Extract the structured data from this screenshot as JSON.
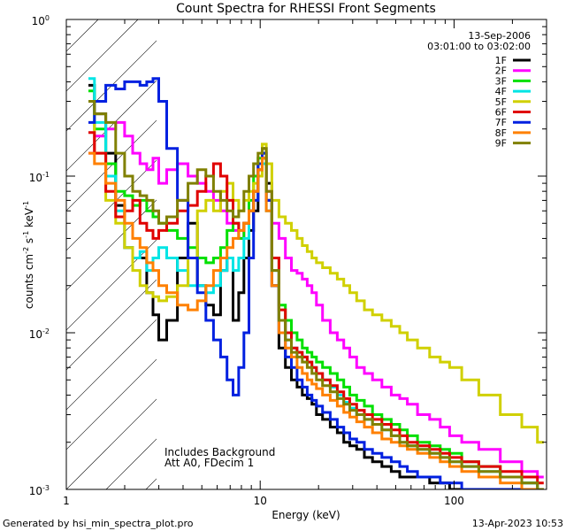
{
  "chart_data": {
    "type": "line",
    "title": "Count Spectra for RHESSI Front Segments",
    "xlabel": "Energy (keV)",
    "ylabel_main": "counts cm",
    "ylabel_sup1": "-2",
    "ylabel_mid1": " s",
    "ylabel_sup2": "-1",
    "ylabel_mid2": " keV",
    "ylabel_sup3": "-1",
    "xscale": "log",
    "yscale": "log",
    "xlim": [
      1,
      300
    ],
    "ylim": [
      0.001,
      1
    ],
    "xticks": [
      {
        "v": 1,
        "label": "1"
      },
      {
        "v": 10,
        "label": "10"
      },
      {
        "v": 100,
        "label": "100"
      }
    ],
    "yticks": [
      {
        "v": 0.001,
        "base": "10",
        "exp": "-3"
      },
      {
        "v": 0.01,
        "base": "10",
        "exp": "-2"
      },
      {
        "v": 0.1,
        "base": "10",
        "exp": "-1"
      },
      {
        "v": 1,
        "base": "10",
        "exp": "0"
      }
    ],
    "date": "13-Sep-2006",
    "time_range": "03:01:00 to 03:02:00",
    "excluded_region_keV": [
      1,
      3
    ],
    "annotations": [
      "Includes Background",
      "Att A0, FDecim 1"
    ],
    "footer_left": "Generated by hsi_min_spectra_plot.pro",
    "footer_right": "13-Apr-2023 10:53",
    "series": [
      {
        "name": "1F",
        "color": "#000000",
        "x": [
          1.3,
          1.5,
          1.7,
          1.9,
          2.1,
          2.3,
          2.5,
          2.7,
          2.9,
          3.1,
          3.5,
          4,
          4.5,
          5,
          5.5,
          6,
          6.5,
          7,
          7.5,
          8,
          8.5,
          9,
          9.5,
          10,
          10.5,
          11,
          12,
          13,
          14,
          15,
          16,
          17,
          18,
          19,
          20,
          22,
          24,
          26,
          28,
          30,
          33,
          36,
          40,
          45,
          50,
          55,
          60,
          70,
          80,
          90,
          100,
          120,
          150,
          200,
          250,
          290
        ],
        "y": [
          0.38,
          0.25,
          0.14,
          0.065,
          0.035,
          0.03,
          0.03,
          0.018,
          0.013,
          0.009,
          0.012,
          0.03,
          0.05,
          0.02,
          0.015,
          0.013,
          0.025,
          0.03,
          0.012,
          0.018,
          0.03,
          0.045,
          0.06,
          0.1,
          0.15,
          0.09,
          0.02,
          0.008,
          0.006,
          0.005,
          0.0045,
          0.004,
          0.0038,
          0.0035,
          0.003,
          0.0028,
          0.0025,
          0.0023,
          0.002,
          0.0019,
          0.0018,
          0.0016,
          0.0015,
          0.0014,
          0.0013,
          0.0012,
          0.0012,
          0.0012,
          0.0011,
          0.0011,
          0.001,
          0.001,
          0.001,
          0.001,
          0.001,
          0.001
        ]
      },
      {
        "name": "2F",
        "color": "#ff00ff",
        "x": [
          1.3,
          1.5,
          1.7,
          1.9,
          2.1,
          2.3,
          2.5,
          2.7,
          2.9,
          3.1,
          3.5,
          4,
          4.5,
          5,
          5.5,
          6,
          6.5,
          7,
          7.5,
          8,
          8.5,
          9,
          9.5,
          10,
          10.5,
          11,
          12,
          13,
          14,
          15,
          16,
          17,
          18,
          19,
          20,
          22,
          24,
          26,
          28,
          30,
          33,
          36,
          40,
          45,
          50,
          55,
          60,
          70,
          80,
          90,
          100,
          120,
          150,
          200,
          250,
          290
        ],
        "y": [
          0.14,
          0.18,
          0.2,
          0.22,
          0.18,
          0.14,
          0.12,
          0.11,
          0.13,
          0.09,
          0.11,
          0.12,
          0.1,
          0.09,
          0.08,
          0.07,
          0.06,
          0.05,
          0.045,
          0.04,
          0.05,
          0.06,
          0.08,
          0.12,
          0.14,
          0.08,
          0.05,
          0.04,
          0.03,
          0.025,
          0.024,
          0.022,
          0.02,
          0.018,
          0.015,
          0.012,
          0.01,
          0.009,
          0.008,
          0.007,
          0.006,
          0.0055,
          0.005,
          0.0045,
          0.004,
          0.0038,
          0.0035,
          0.003,
          0.0028,
          0.0025,
          0.0022,
          0.002,
          0.0018,
          0.0015,
          0.0013,
          0.0012
        ]
      },
      {
        "name": "3F",
        "color": "#00e000",
        "x": [
          1.3,
          1.5,
          1.7,
          1.9,
          2.1,
          2.3,
          2.5,
          2.7,
          2.9,
          3.1,
          3.5,
          4,
          4.5,
          5,
          5.5,
          6,
          6.5,
          7,
          7.5,
          8,
          8.5,
          9,
          9.5,
          10,
          10.5,
          11,
          12,
          13,
          14,
          15,
          16,
          17,
          18,
          19,
          20,
          22,
          24,
          26,
          28,
          30,
          33,
          36,
          40,
          45,
          50,
          55,
          60,
          70,
          80,
          90,
          100,
          120,
          150,
          200,
          250,
          290
        ],
        "y": [
          0.35,
          0.2,
          0.12,
          0.08,
          0.075,
          0.065,
          0.07,
          0.06,
          0.055,
          0.05,
          0.045,
          0.04,
          0.035,
          0.03,
          0.028,
          0.03,
          0.035,
          0.045,
          0.05,
          0.04,
          0.05,
          0.07,
          0.1,
          0.13,
          0.14,
          0.07,
          0.03,
          0.015,
          0.012,
          0.01,
          0.009,
          0.008,
          0.0075,
          0.007,
          0.0065,
          0.006,
          0.0055,
          0.005,
          0.0045,
          0.004,
          0.0037,
          0.0034,
          0.003,
          0.0028,
          0.0026,
          0.0024,
          0.0022,
          0.002,
          0.0019,
          0.0018,
          0.0017,
          0.0015,
          0.0014,
          0.0012,
          0.0011,
          0.001
        ]
      },
      {
        "name": "4F",
        "color": "#00e5e5",
        "x": [
          1.3,
          1.5,
          1.7,
          1.9,
          2.1,
          2.3,
          2.5,
          2.7,
          2.9,
          3.1,
          3.5,
          4,
          4.5,
          5,
          5.5,
          6,
          6.5,
          7,
          7.5,
          8,
          8.5,
          9,
          9.5,
          10,
          10.5,
          11,
          12,
          13,
          14,
          15,
          16,
          17,
          18,
          19,
          20,
          22,
          24,
          26,
          28,
          30,
          33,
          36,
          40,
          45,
          50,
          55,
          60,
          70,
          80,
          90,
          100,
          120,
          150,
          200,
          250,
          290
        ],
        "y": [
          0.42,
          0.22,
          0.1,
          0.06,
          0.035,
          0.03,
          0.033,
          0.025,
          0.03,
          0.035,
          0.03,
          0.025,
          0.02,
          0.02,
          0.018,
          0.02,
          0.025,
          0.03,
          0.025,
          0.03,
          0.04,
          0.06,
          0.08,
          0.11,
          0.12,
          0.06,
          0.025,
          0.012,
          0.009,
          0.008,
          0.0075,
          0.007,
          0.0065,
          0.006,
          0.0055,
          0.005,
          0.0045,
          0.004,
          0.0036,
          0.0033,
          0.003,
          0.0028,
          0.0026,
          0.0024,
          0.0022,
          0.002,
          0.0019,
          0.0018,
          0.0017,
          0.0016,
          0.0015,
          0.0014,
          0.0013,
          0.0012,
          0.0011,
          0.001
        ]
      },
      {
        "name": "5F",
        "color": "#d0d000",
        "x": [
          1.3,
          1.5,
          1.7,
          1.9,
          2.1,
          2.3,
          2.5,
          2.7,
          2.9,
          3.1,
          3.5,
          4,
          4.5,
          5,
          5.5,
          6,
          6.5,
          7,
          7.5,
          8,
          8.5,
          9,
          9.5,
          10,
          10.5,
          11,
          12,
          13,
          14,
          15,
          16,
          17,
          18,
          19,
          20,
          22,
          24,
          26,
          28,
          30,
          33,
          36,
          40,
          45,
          50,
          55,
          60,
          70,
          80,
          90,
          100,
          120,
          150,
          200,
          250,
          290
        ],
        "y": [
          0.3,
          0.14,
          0.07,
          0.05,
          0.035,
          0.025,
          0.02,
          0.018,
          0.017,
          0.016,
          0.017,
          0.02,
          0.03,
          0.06,
          0.07,
          0.06,
          0.08,
          0.09,
          0.07,
          0.06,
          0.07,
          0.08,
          0.09,
          0.1,
          0.16,
          0.12,
          0.07,
          0.055,
          0.05,
          0.045,
          0.04,
          0.036,
          0.033,
          0.03,
          0.028,
          0.026,
          0.024,
          0.022,
          0.02,
          0.018,
          0.016,
          0.014,
          0.013,
          0.012,
          0.011,
          0.01,
          0.009,
          0.008,
          0.007,
          0.0065,
          0.006,
          0.005,
          0.004,
          0.003,
          0.0025,
          0.002
        ]
      },
      {
        "name": "6F",
        "color": "#e00000",
        "x": [
          1.3,
          1.5,
          1.7,
          1.9,
          2.1,
          2.3,
          2.5,
          2.7,
          2.9,
          3.1,
          3.5,
          4,
          4.5,
          5,
          5.5,
          6,
          6.5,
          7,
          7.5,
          8,
          8.5,
          9,
          9.5,
          10,
          10.5,
          11,
          12,
          13,
          14,
          15,
          16,
          17,
          18,
          19,
          20,
          22,
          24,
          26,
          28,
          30,
          33,
          36,
          40,
          45,
          50,
          55,
          60,
          70,
          80,
          90,
          100,
          120,
          150,
          200,
          250,
          290
        ],
        "y": [
          0.19,
          0.14,
          0.08,
          0.055,
          0.06,
          0.07,
          0.05,
          0.045,
          0.04,
          0.045,
          0.05,
          0.06,
          0.065,
          0.08,
          0.1,
          0.12,
          0.1,
          0.07,
          0.05,
          0.045,
          0.05,
          0.06,
          0.08,
          0.11,
          0.13,
          0.07,
          0.03,
          0.014,
          0.01,
          0.008,
          0.0075,
          0.007,
          0.0065,
          0.006,
          0.0055,
          0.005,
          0.0046,
          0.0042,
          0.0038,
          0.0035,
          0.0032,
          0.003,
          0.0028,
          0.0026,
          0.0024,
          0.0022,
          0.002,
          0.0019,
          0.0018,
          0.0017,
          0.0016,
          0.0015,
          0.0014,
          0.0013,
          0.0012,
          0.0011
        ]
      },
      {
        "name": "7F",
        "color": "#0020e0",
        "x": [
          1.3,
          1.5,
          1.7,
          1.9,
          2.1,
          2.3,
          2.5,
          2.7,
          2.9,
          3.1,
          3.5,
          4,
          4.5,
          5,
          5.5,
          6,
          6.5,
          7,
          7.5,
          8,
          8.5,
          9,
          9.5,
          10,
          10.5,
          11,
          12,
          13,
          14,
          15,
          16,
          17,
          18,
          19,
          20,
          22,
          24,
          26,
          28,
          30,
          33,
          36,
          40,
          45,
          50,
          55,
          60,
          70,
          80,
          90,
          100,
          120,
          150,
          200,
          250,
          290
        ],
        "y": [
          0.22,
          0.3,
          0.38,
          0.36,
          0.4,
          0.4,
          0.38,
          0.4,
          0.42,
          0.3,
          0.15,
          0.07,
          0.03,
          0.018,
          0.012,
          0.009,
          0.007,
          0.005,
          0.004,
          0.006,
          0.01,
          0.03,
          0.07,
          0.12,
          0.14,
          0.07,
          0.02,
          0.01,
          0.007,
          0.006,
          0.005,
          0.0045,
          0.004,
          0.0037,
          0.0034,
          0.0031,
          0.0028,
          0.0025,
          0.0023,
          0.0021,
          0.002,
          0.0018,
          0.0017,
          0.0016,
          0.0015,
          0.0014,
          0.0013,
          0.0012,
          0.0012,
          0.0011,
          0.0011,
          0.001,
          0.001,
          0.001,
          0.001,
          0.001
        ]
      },
      {
        "name": "8F",
        "color": "#ff8000",
        "x": [
          1.3,
          1.5,
          1.7,
          1.9,
          2.1,
          2.3,
          2.5,
          2.7,
          2.9,
          3.1,
          3.5,
          4,
          4.5,
          5,
          5.5,
          6,
          6.5,
          7,
          7.5,
          8,
          8.5,
          9,
          9.5,
          10,
          10.5,
          11,
          12,
          13,
          14,
          15,
          16,
          17,
          18,
          19,
          20,
          22,
          24,
          26,
          28,
          30,
          33,
          36,
          40,
          45,
          50,
          55,
          60,
          70,
          80,
          90,
          100,
          120,
          150,
          200,
          250,
          290
        ],
        "y": [
          0.14,
          0.12,
          0.09,
          0.07,
          0.05,
          0.04,
          0.035,
          0.028,
          0.025,
          0.02,
          0.018,
          0.015,
          0.014,
          0.016,
          0.02,
          0.025,
          0.03,
          0.035,
          0.04,
          0.045,
          0.05,
          0.06,
          0.08,
          0.11,
          0.13,
          0.06,
          0.02,
          0.01,
          0.008,
          0.007,
          0.006,
          0.0055,
          0.005,
          0.0047,
          0.0044,
          0.004,
          0.0037,
          0.0034,
          0.0031,
          0.0029,
          0.0027,
          0.0025,
          0.0023,
          0.0021,
          0.002,
          0.0019,
          0.0018,
          0.0017,
          0.0016,
          0.0015,
          0.0014,
          0.0013,
          0.0012,
          0.0011,
          0.001,
          0.001
        ]
      },
      {
        "name": "9F",
        "color": "#808000",
        "x": [
          1.3,
          1.5,
          1.7,
          1.9,
          2.1,
          2.3,
          2.5,
          2.7,
          2.9,
          3.1,
          3.5,
          4,
          4.5,
          5,
          5.5,
          6,
          6.5,
          7,
          7.5,
          8,
          8.5,
          9,
          9.5,
          10,
          10.5,
          11,
          12,
          13,
          14,
          15,
          16,
          17,
          18,
          19,
          20,
          22,
          24,
          26,
          28,
          30,
          33,
          36,
          40,
          45,
          50,
          55,
          60,
          70,
          80,
          90,
          100,
          120,
          150,
          200,
          250,
          290
        ],
        "y": [
          0.3,
          0.25,
          0.22,
          0.14,
          0.1,
          0.08,
          0.075,
          0.07,
          0.06,
          0.05,
          0.055,
          0.07,
          0.09,
          0.11,
          0.1,
          0.08,
          0.07,
          0.06,
          0.055,
          0.06,
          0.08,
          0.1,
          0.12,
          0.14,
          0.15,
          0.08,
          0.025,
          0.012,
          0.009,
          0.0075,
          0.007,
          0.0065,
          0.006,
          0.0055,
          0.005,
          0.0046,
          0.0042,
          0.0038,
          0.0035,
          0.0032,
          0.003,
          0.0028,
          0.0026,
          0.0024,
          0.0022,
          0.002,
          0.0019,
          0.0018,
          0.0017,
          0.0016,
          0.0015,
          0.0014,
          0.0013,
          0.0012,
          0.0011,
          0.001
        ]
      }
    ]
  }
}
